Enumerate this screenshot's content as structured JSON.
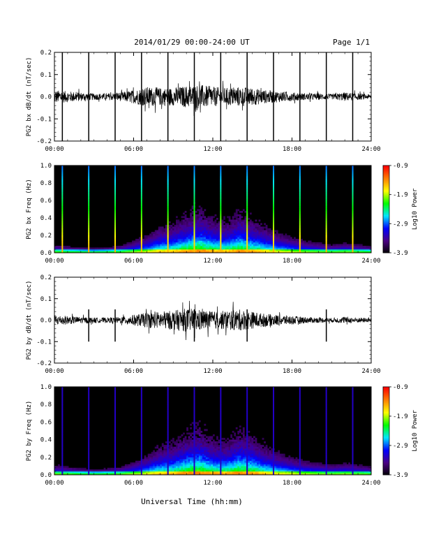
{
  "header": {
    "title": "2014/01/29  00:00-24:00 UT",
    "page": "Page 1/1"
  },
  "colors": {
    "trace": "#000000",
    "spectrogram_background": "#000000",
    "colormap": [
      "#000000",
      "#4b0082",
      "#0000ff",
      "#00e5ff",
      "#00ff00",
      "#ffff00",
      "#ff7f00",
      "#ff0000"
    ]
  },
  "time_axis": {
    "range_hours": [
      0,
      24
    ],
    "ticks": [
      "00:00",
      "06:00",
      "12:00",
      "18:00",
      "24:00"
    ],
    "xlabel": "Universal Time (hh:mm)"
  },
  "calibration_pulse_hours": [
    0.6,
    2.6,
    4.6,
    6.6,
    8.6,
    10.6,
    12.6,
    14.6,
    16.6,
    18.6,
    20.6,
    22.6
  ],
  "chart_data": [
    {
      "type": "line",
      "ylabel": "PG2 bx dB/dt (nT/sec)",
      "ylim": [
        -0.2,
        0.2
      ],
      "yticks": [
        "-0.2",
        "-0.1",
        "0.0",
        "0.1",
        "0.2"
      ],
      "x": [
        0,
        1,
        2,
        3,
        4,
        5,
        6,
        7,
        8,
        9,
        10,
        11,
        12,
        13,
        14,
        15,
        16,
        17,
        18,
        19,
        20,
        21,
        22,
        23,
        24
      ],
      "series": [
        {
          "envelope_amplitude": [
            0.03,
            0.025,
            0.02,
            0.015,
            0.015,
            0.02,
            0.03,
            0.045,
            0.04,
            0.04,
            0.05,
            0.055,
            0.045,
            0.04,
            0.045,
            0.04,
            0.03,
            0.025,
            0.02,
            0.015,
            0.015,
            0.012,
            0.02,
            0.015,
            0.01
          ]
        }
      ],
      "spikes": {
        "hours": [
          0.6,
          2.6,
          4.6,
          6.6,
          8.6,
          10.6,
          12.6,
          14.6,
          16.6,
          18.6,
          20.6,
          22.6
        ],
        "min": -0.2,
        "max": 0.2
      }
    },
    {
      "type": "heatmap",
      "ylabel": "PG2 bx Freq (Hz)",
      "ylim": [
        0.0,
        1.0
      ],
      "yticks": [
        "0.0",
        "0.2",
        "0.4",
        "0.6",
        "0.8",
        "1.0"
      ],
      "colorbar": {
        "label": "Log10 Power",
        "ticks": [
          "-0.9",
          "-1.9",
          "-2.9",
          "-3.9"
        ],
        "range": [
          -3.9,
          -0.9
        ]
      },
      "activity": [
        0.1,
        0.08,
        0.07,
        0.06,
        0.07,
        0.09,
        0.14,
        0.2,
        0.28,
        0.3,
        0.38,
        0.42,
        0.35,
        0.32,
        0.4,
        0.34,
        0.28,
        0.22,
        0.18,
        0.14,
        0.12,
        0.1,
        0.12,
        0.1,
        0.08
      ]
    },
    {
      "type": "line",
      "ylabel": "PG2 by dB/dt (nT/sec)",
      "ylim": [
        -0.2,
        0.2
      ],
      "yticks": [
        "-0.2",
        "-0.1",
        "0.0",
        "0.1",
        "0.2"
      ],
      "x": [
        0,
        1,
        2,
        3,
        4,
        5,
        6,
        7,
        8,
        9,
        10,
        11,
        12,
        13,
        14,
        15,
        16,
        17,
        18,
        19,
        20,
        21,
        22,
        23,
        24
      ],
      "series": [
        {
          "envelope_amplitude": [
            0.025,
            0.02,
            0.015,
            0.012,
            0.012,
            0.015,
            0.025,
            0.035,
            0.04,
            0.045,
            0.055,
            0.05,
            0.04,
            0.045,
            0.05,
            0.04,
            0.03,
            0.025,
            0.02,
            0.015,
            0.012,
            0.01,
            0.015,
            0.012,
            0.01
          ]
        }
      ],
      "spikes": {
        "hours": [
          2.6,
          4.6,
          10.6,
          14.6,
          20.6
        ],
        "min": -0.1,
        "max": 0.05
      }
    },
    {
      "type": "heatmap",
      "ylabel": "PG2 by Freq (Hz)",
      "ylim": [
        0.0,
        1.0
      ],
      "yticks": [
        "0.0",
        "0.2",
        "0.4",
        "0.6",
        "0.8",
        "1.0"
      ],
      "colorbar": {
        "label": "Log10 Power",
        "ticks": [
          "-0.9",
          "-1.9",
          "-2.9",
          "-3.9"
        ],
        "range": [
          -3.9,
          -0.9
        ]
      },
      "activity": [
        0.12,
        0.1,
        0.08,
        0.07,
        0.08,
        0.1,
        0.15,
        0.22,
        0.3,
        0.32,
        0.4,
        0.44,
        0.36,
        0.34,
        0.42,
        0.38,
        0.3,
        0.24,
        0.2,
        0.16,
        0.14,
        0.12,
        0.14,
        0.12,
        0.1
      ]
    }
  ]
}
